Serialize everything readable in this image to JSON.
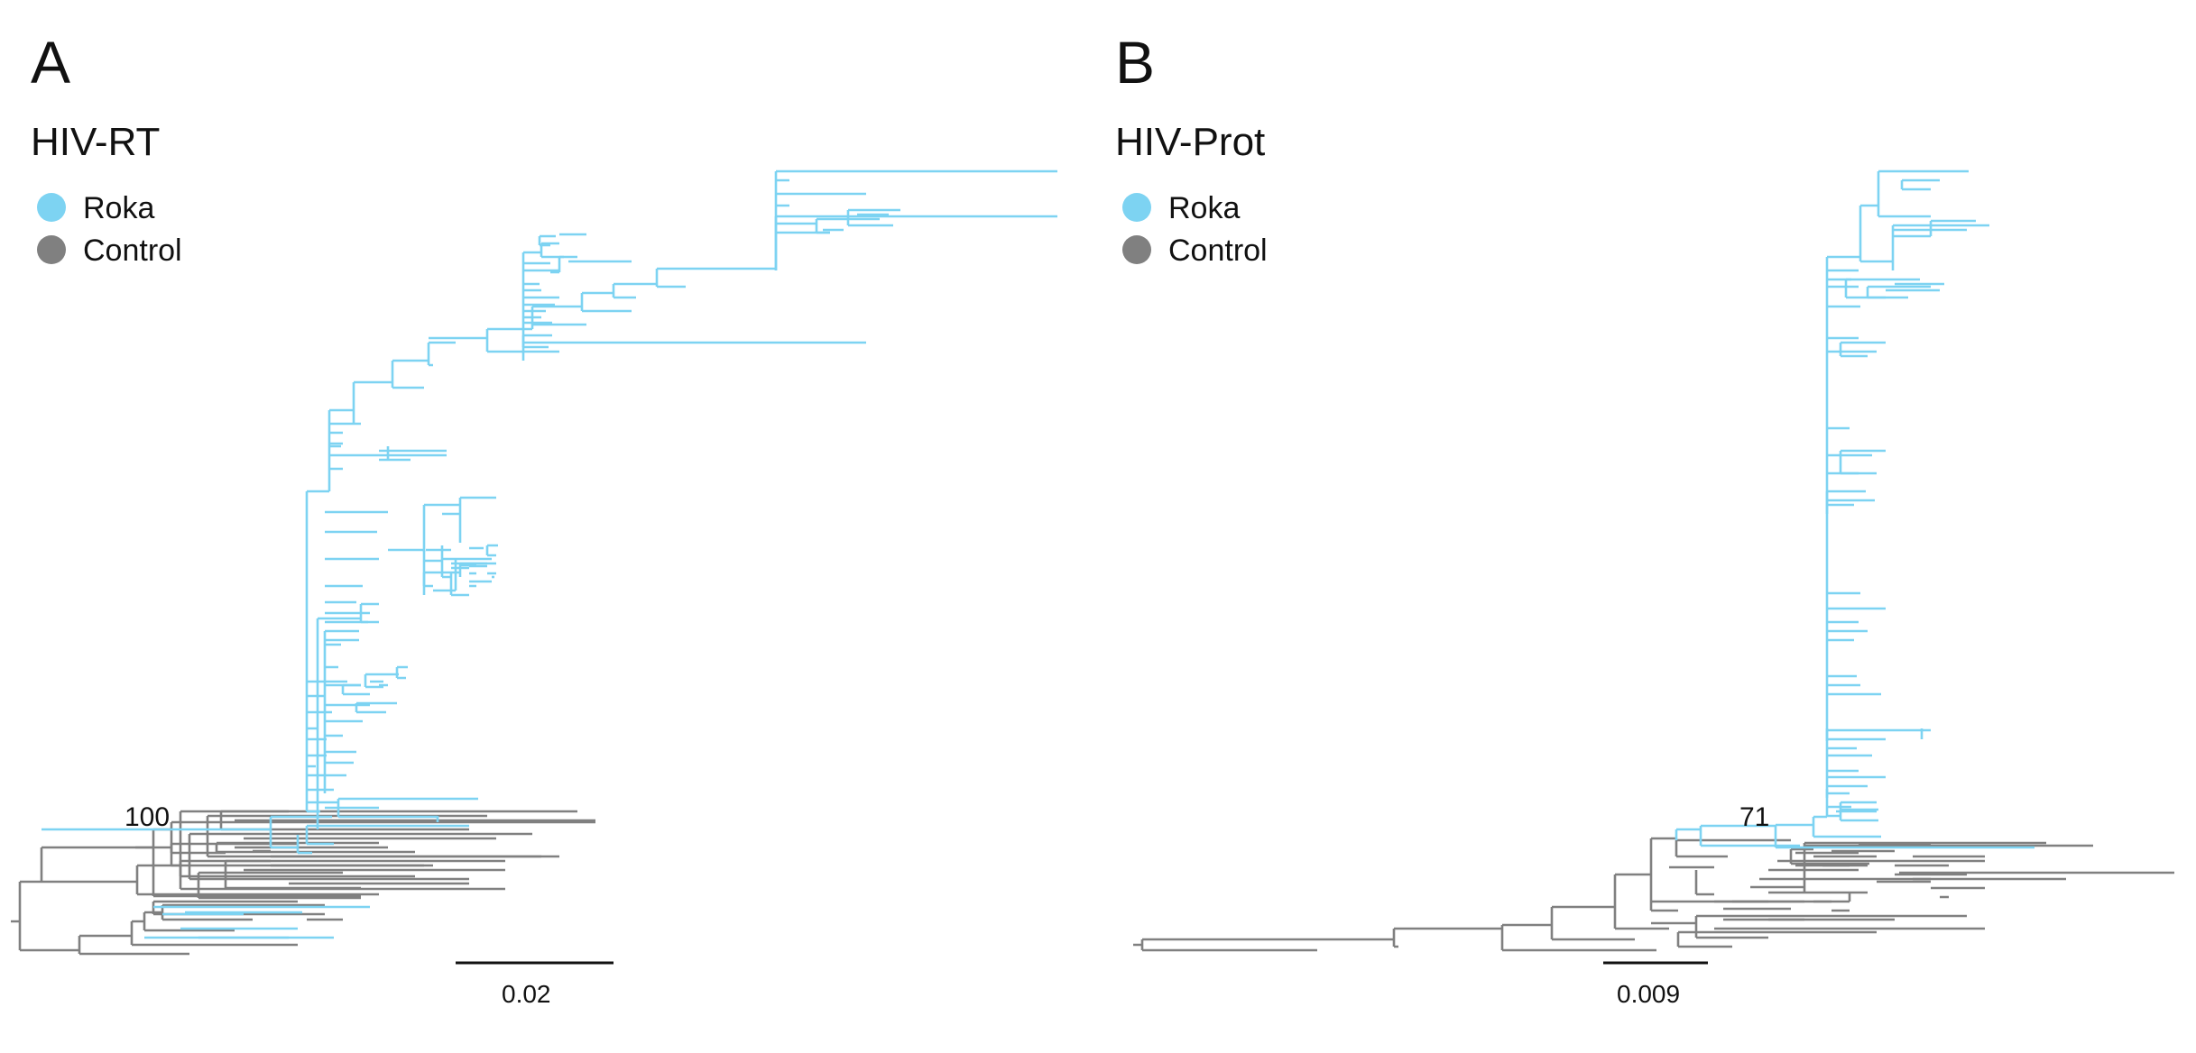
{
  "colors": {
    "roka": "#7dd3f2",
    "control": "#808080",
    "scale_bar": "#111111"
  },
  "panels": [
    {
      "id": "A",
      "panel_label": "A",
      "title": "HIV-RT",
      "legend": [
        {
          "label": "Roka",
          "color": "#7dd3f2"
        },
        {
          "label": "Control",
          "color": "#808080"
        }
      ],
      "bootstrap_label": "100",
      "scale_bar_label": "0.02"
    },
    {
      "id": "B",
      "panel_label": "B",
      "title": "HIV-Prot",
      "legend": [
        {
          "label": "Roka",
          "color": "#7dd3f2"
        },
        {
          "label": "Control",
          "color": "#808080"
        }
      ],
      "bootstrap_label": "71",
      "scale_bar_label": "0.009"
    }
  ]
}
